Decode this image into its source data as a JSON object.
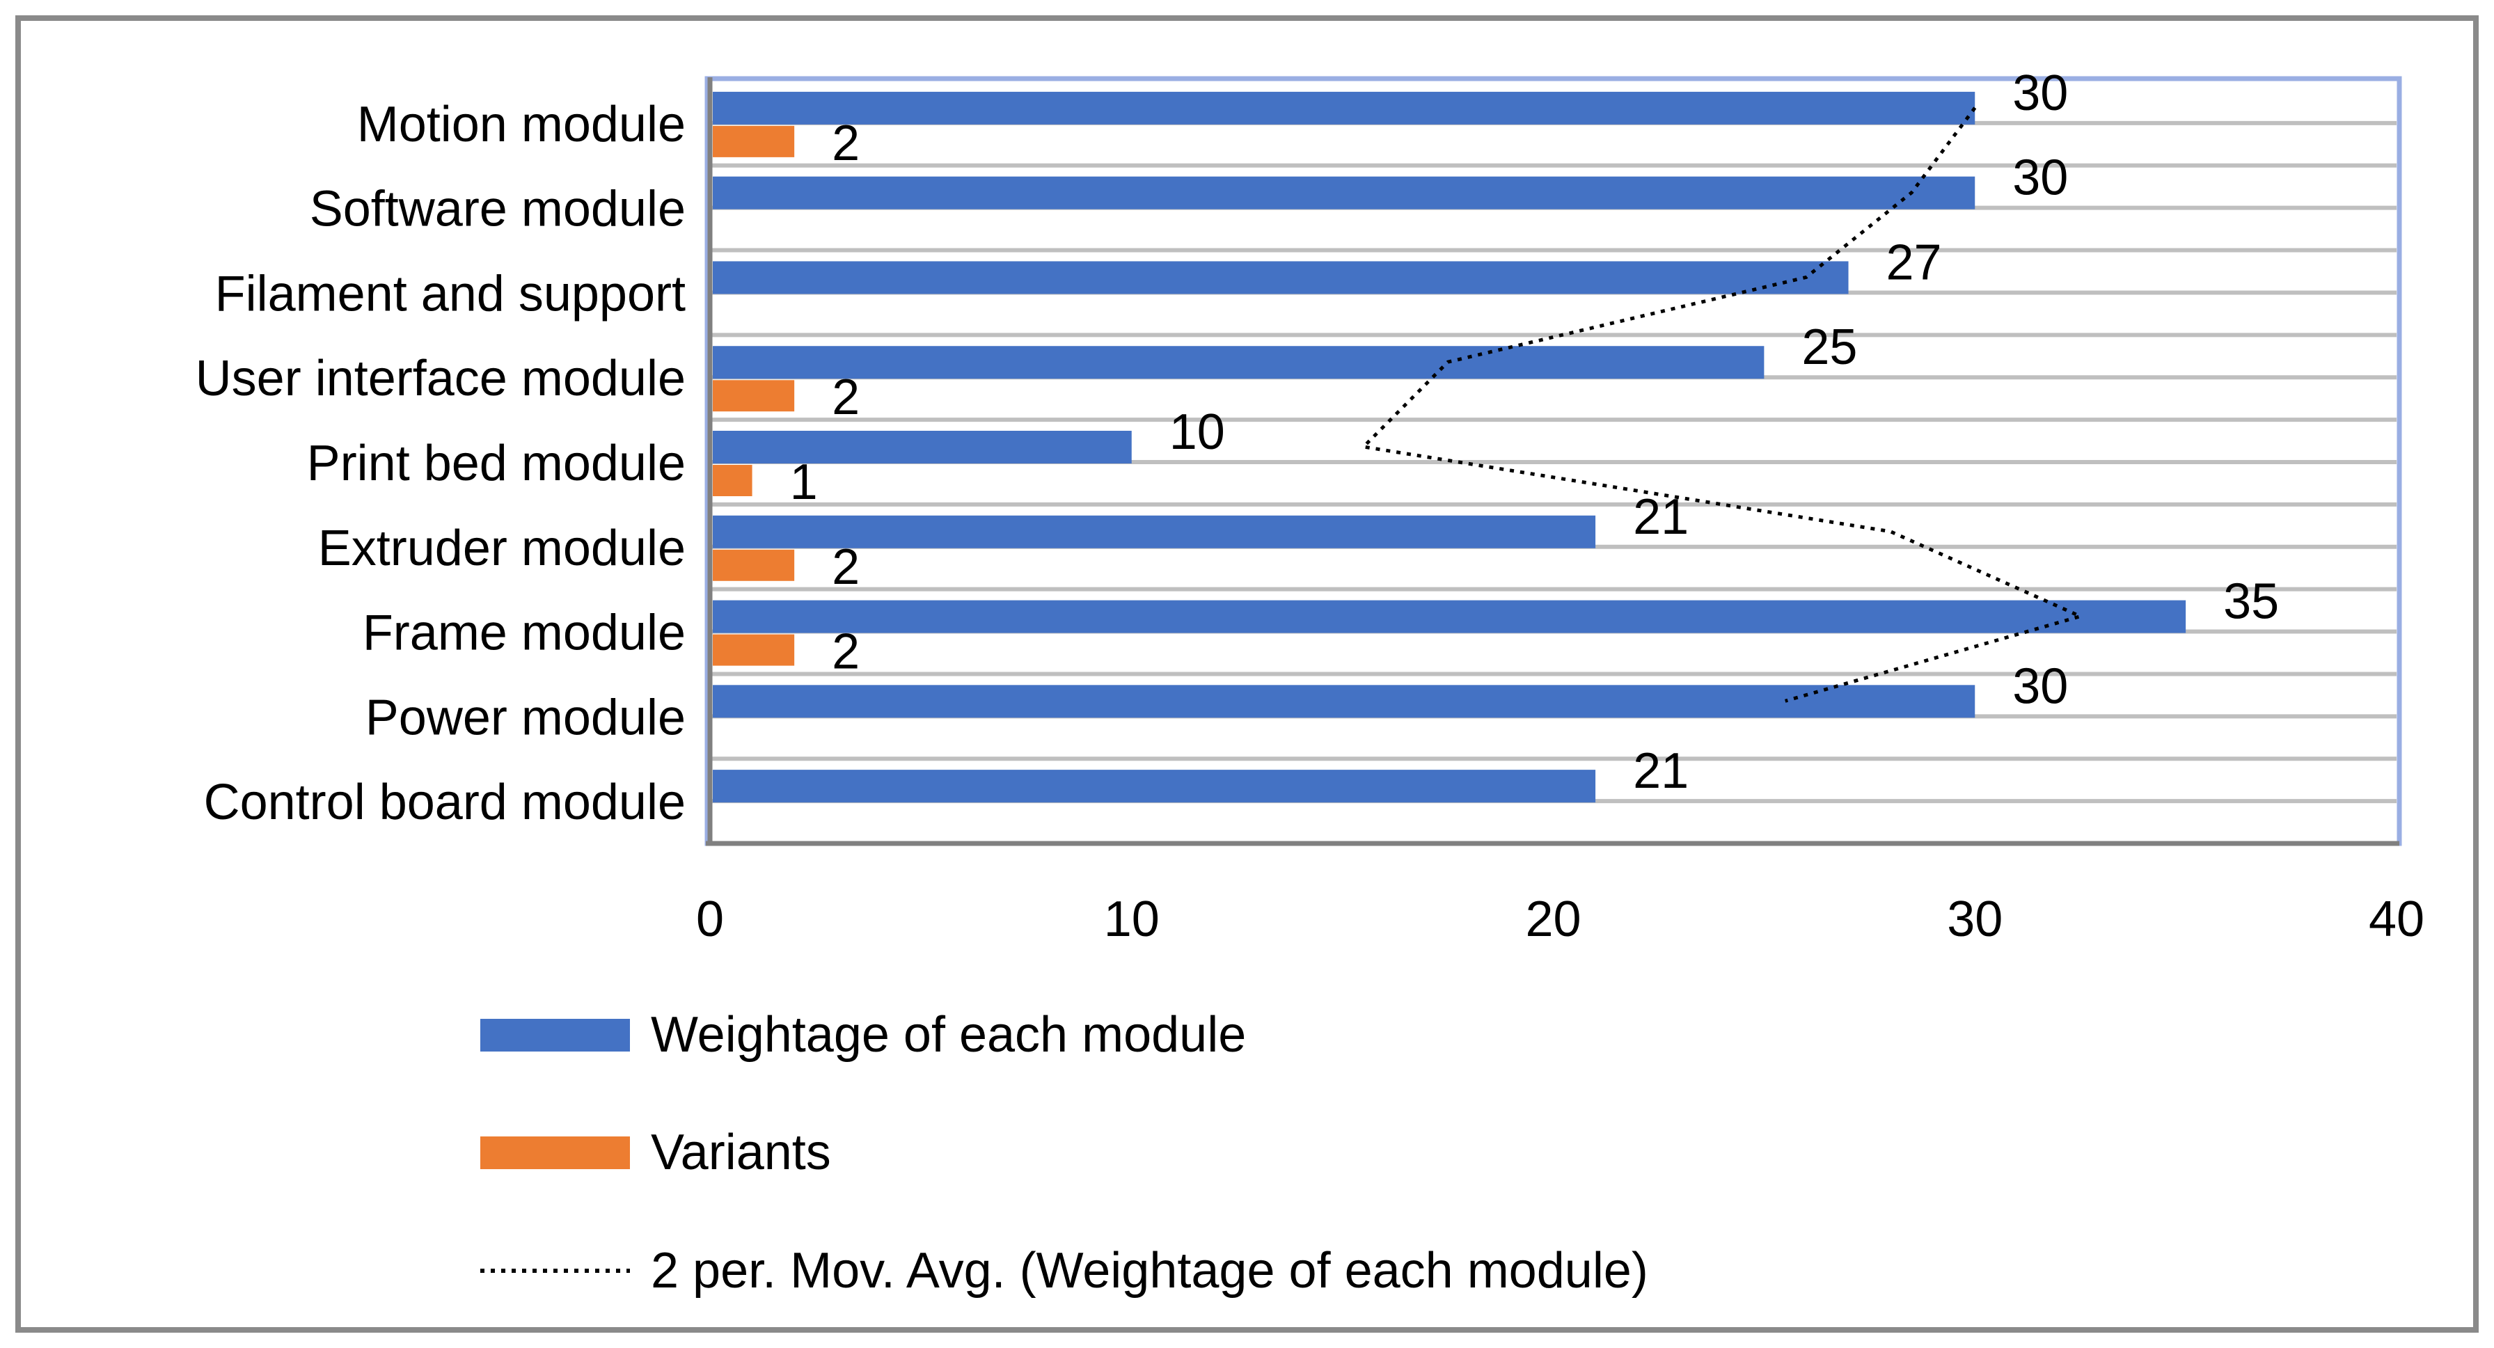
{
  "chart_data": {
    "type": "bar",
    "orientation": "horizontal",
    "title": "",
    "xlabel": "",
    "ylabel": "",
    "xlim": [
      0,
      40
    ],
    "x_ticks": [
      "0",
      "10",
      "20",
      "30",
      "40"
    ],
    "grid": true,
    "legend_position": "bottom-left",
    "categories": [
      "Motion module",
      "Software module",
      "Filament and support",
      "User interface module",
      "Print bed module",
      "Extruder module",
      "Frame module",
      "Power module",
      "Control board module"
    ],
    "series": [
      {
        "name": "Weightage of each module",
        "color": "#4472C4",
        "values": [
          30,
          30,
          27,
          25,
          10,
          21,
          35,
          30,
          21
        ],
        "data_labels": [
          "30",
          "30",
          "27",
          "25",
          "10",
          "21",
          "35",
          "30",
          "21"
        ]
      },
      {
        "name": "Variants",
        "color": "#ED7D31",
        "values": [
          2,
          null,
          null,
          2,
          1,
          2,
          2,
          null,
          null
        ],
        "data_labels": [
          "2",
          null,
          null,
          "2",
          "1",
          "2",
          "2",
          null,
          null
        ]
      }
    ],
    "trendline": {
      "name": "2 per. Mov. Avg. (Weightage of each module)",
      "type": "moving-average",
      "period": 2,
      "color": "#000000",
      "style": "dotted",
      "values": [
        30,
        28.5,
        26,
        17.5,
        15.5,
        28,
        32.5,
        25.5,
        null
      ]
    }
  },
  "legend": {
    "items": [
      {
        "label": "Weightage of each module",
        "swatch": "blue-rect"
      },
      {
        "label": "Variants",
        "swatch": "orange-rect"
      },
      {
        "label": "2 per. Mov. Avg. (Weightage of each module)",
        "swatch": "dotted-line"
      }
    ]
  },
  "colors": {
    "blue": "#4472C4",
    "orange": "#ED7D31",
    "gridline": "#BFBFBF",
    "axis": "#808080",
    "plot_border": "#9AAEE3",
    "frame": "#8A8A8A",
    "text": "#000000"
  }
}
